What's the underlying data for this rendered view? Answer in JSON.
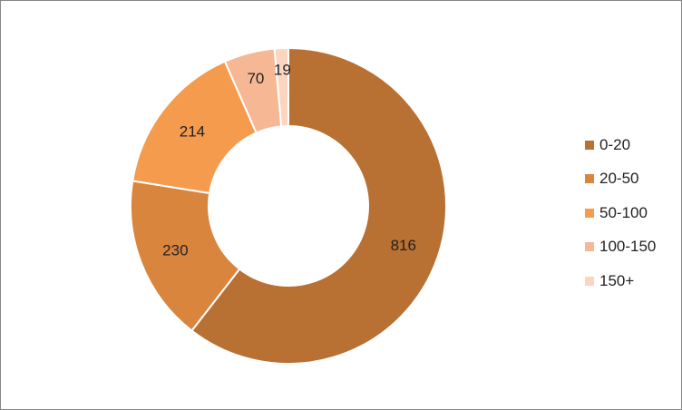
{
  "chart_data": {
    "type": "pie",
    "variant": "donut",
    "title": "",
    "categories": [
      "0-20",
      "20-50",
      "50-100",
      "100-150",
      "150+"
    ],
    "values": [
      816,
      230,
      214,
      70,
      19
    ],
    "colors": [
      "#b87033",
      "#d9853e",
      "#f59b4d",
      "#f6b894",
      "#fad5c0"
    ],
    "data_labels": [
      "816",
      "230",
      "214",
      "70",
      "19"
    ],
    "legend": {
      "position": "right"
    }
  }
}
